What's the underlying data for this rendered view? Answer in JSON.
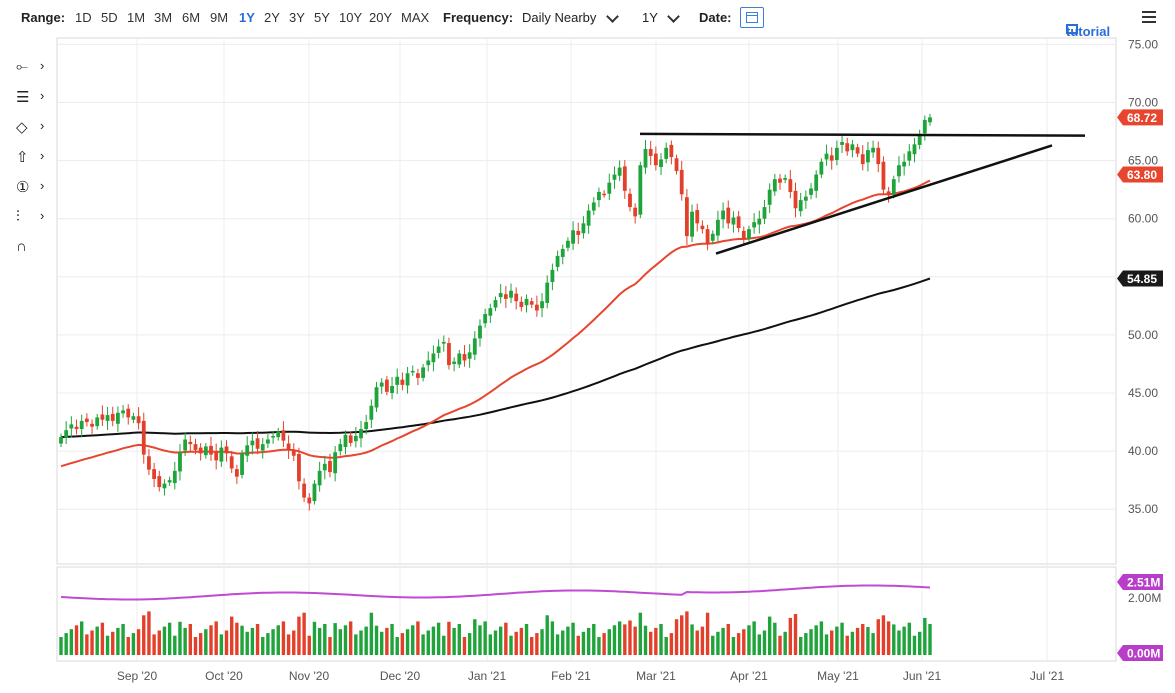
{
  "toolbar": {
    "range_label": "Range:",
    "ranges": [
      "1D",
      "5D",
      "1M",
      "3M",
      "6M",
      "9M",
      "1Y",
      "2Y",
      "3Y",
      "5Y",
      "10Y",
      "20Y",
      "MAX"
    ],
    "active_range": "1Y",
    "frequency_label": "Frequency:",
    "frequency_value": "Daily Nearby",
    "period_value": "1Y",
    "date_label": "Date:",
    "tutorial_label": "tutorial"
  },
  "icons": {
    "calendar": "calendar-icon",
    "tutorial": "tutorial-icon",
    "menu": "hamburger-menu-icon",
    "tools": [
      "crosshair-line-tool-icon",
      "text-list-tool-icon",
      "shape-tool-icon",
      "arrow-up-tool-icon",
      "numbered-marker-tool-icon",
      "fibonacci-tool-icon",
      "magnet-icon"
    ]
  },
  "colors": {
    "up": "#1fa33b",
    "down": "#e3402b",
    "ma_short": "#e8452e",
    "ma_long": "#111111",
    "volume_avg": "#c04ad3",
    "badge_red": "#e8452e",
    "badge_black": "#1a1a1a",
    "badge_purple": "#b83ec9",
    "accent": "#2a6dd8"
  },
  "chart_data": {
    "type": "candlestick",
    "y_axis": {
      "range": [
        33,
        75.5
      ],
      "ticks": [
        "75.00",
        "70.00",
        "65.00",
        "60.00",
        "55.00",
        "50.00",
        "45.00",
        "40.00",
        "35.00"
      ]
    },
    "x_axis": {
      "ticks": [
        "Sep '20",
        "Oct '20",
        "Nov '20",
        "Dec '20",
        "Jan '21",
        "Feb '21",
        "Mar '21",
        "Apr '21",
        "May '21",
        "Jun '21",
        "Jul '21"
      ]
    },
    "price_badges": [
      {
        "value": "68.72",
        "kind": "last price"
      },
      {
        "value": "63.80",
        "kind": "short moving average"
      },
      {
        "value": "54.85",
        "kind": "long moving average"
      }
    ],
    "closes": [
      41.2,
      41.8,
      42.3,
      41.9,
      42.6,
      42.5,
      42.1,
      42.9,
      42.7,
      43.1,
      42.6,
      43.3,
      43.5,
      42.9,
      43.0,
      42.4,
      39.7,
      38.4,
      37.6,
      36.9,
      37.2,
      37.5,
      38.3,
      39.9,
      41.0,
      40.6,
      40.1,
      39.8,
      40.4,
      39.7,
      39.2,
      40.3,
      39.8,
      38.5,
      37.8,
      39.8,
      40.5,
      40.9,
      40.2,
      40.6,
      41.0,
      41.3,
      41.7,
      40.9,
      40.1,
      39.6,
      37.4,
      36.0,
      35.5,
      37.2,
      38.3,
      38.9,
      38.2,
      39.9,
      40.6,
      41.4,
      40.7,
      41.3,
      41.9,
      42.5,
      43.9,
      45.5,
      45.9,
      45.1,
      45.6,
      46.4,
      45.7,
      46.7,
      46.9,
      46.3,
      47.2,
      47.8,
      48.4,
      49.0,
      49.4,
      47.4,
      47.7,
      48.4,
      47.8,
      48.5,
      49.7,
      50.8,
      51.8,
      52.3,
      53.0,
      53.6,
      53.1,
      53.8,
      52.9,
      52.4,
      53.1,
      52.6,
      52.1,
      52.9,
      54.5,
      55.6,
      56.8,
      57.4,
      58.1,
      59.0,
      58.6,
      59.6,
      60.7,
      61.4,
      62.3,
      62.1,
      63.1,
      63.8,
      64.4,
      62.4,
      61.0,
      60.2,
      64.6,
      66.0,
      65.4,
      64.6,
      65.1,
      66.1,
      65.3,
      64.1,
      62.1,
      58.5,
      60.6,
      59.6,
      59.1,
      57.9,
      58.7,
      59.9,
      60.7,
      59.6,
      60.1,
      59.2,
      58.3,
      59.1,
      59.7,
      60.0,
      61.0,
      62.5,
      63.4,
      63.1,
      63.5,
      62.3,
      60.9,
      61.6,
      61.9,
      62.6,
      63.8,
      64.9,
      65.6,
      65.0,
      66.1,
      66.6,
      65.8,
      66.4,
      65.6,
      64.7,
      65.9,
      66.1,
      64.7,
      62.5,
      62.0,
      63.4,
      64.6,
      64.9,
      65.8,
      66.4,
      67.2,
      68.5,
      68.72
    ],
    "ma_short": {
      "name": "",
      "start": 38.6,
      "values_note": "",
      "end": 63.8
    },
    "ma_long": {
      "name": "",
      "start": 41.2,
      "end": 54.85
    },
    "resistance_line": {
      "level": 67.3
    },
    "support_line": {
      "from": 57.0,
      "to": 66.3
    },
    "volume": {
      "ticks": [
        "2.00M",
        "0.00M"
      ],
      "badges": [
        {
          "value": "2.51M",
          "kind": "volume average"
        },
        {
          "value": "0.00M",
          "kind": "axis"
        }
      ]
    }
  }
}
